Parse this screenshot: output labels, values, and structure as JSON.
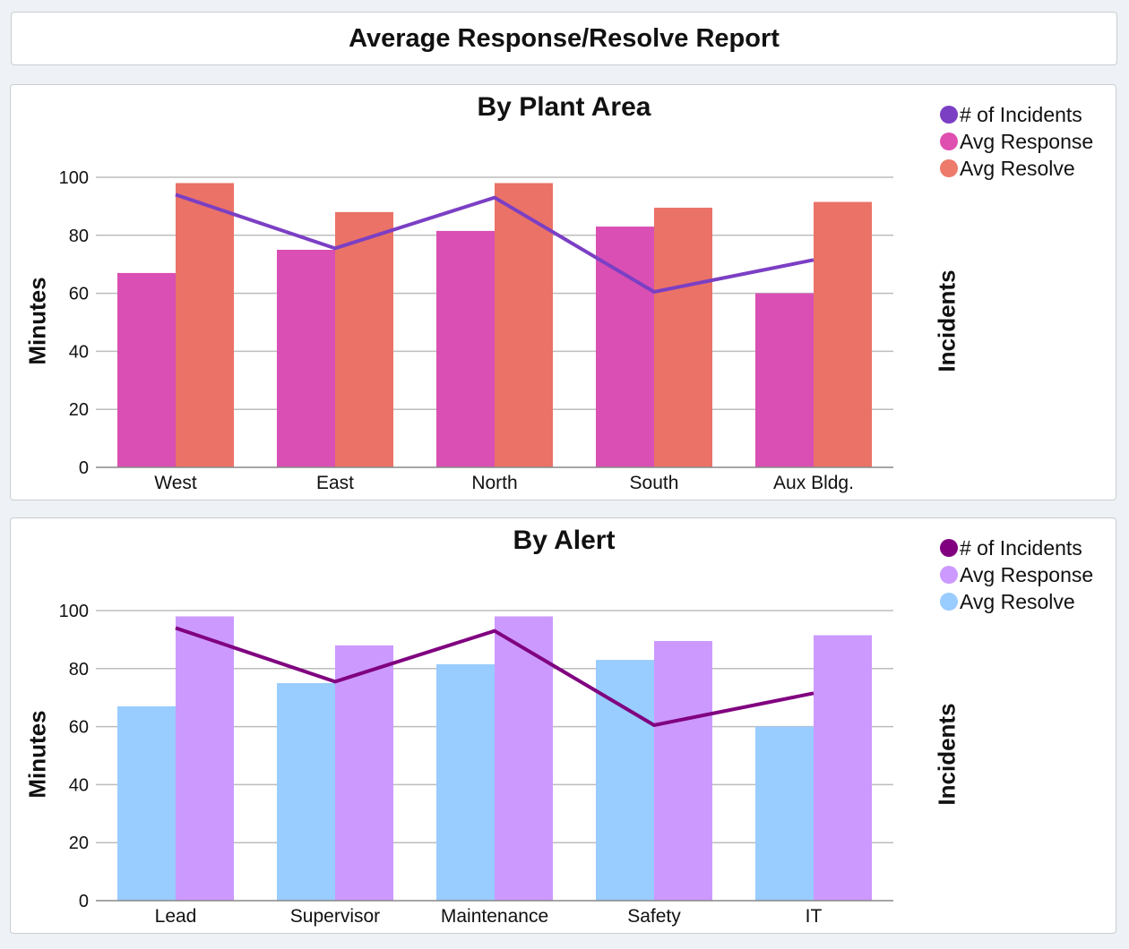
{
  "report_title": "Average Response/Resolve Report",
  "chart_data": [
    {
      "type": "bar",
      "title": "By Plant Area",
      "ylabel": "Minutes",
      "y2label": "Incidents",
      "xlabel": "",
      "ylim": [
        0,
        100
      ],
      "yticks": [
        "0",
        "20",
        "40",
        "60",
        "80",
        "100"
      ],
      "categories": [
        "West",
        "East",
        "North",
        "South",
        "Aux Bldg."
      ],
      "grid": true,
      "legend_position": "top-right",
      "series": [
        {
          "name": "Avg Response",
          "kind": "bar",
          "color": "#d94fb3",
          "values": [
            67,
            75,
            81.5,
            83,
            60
          ]
        },
        {
          "name": "Avg Resolve",
          "kind": "bar",
          "color": "#ea7267",
          "values": [
            98,
            88,
            98,
            89.5,
            91.5
          ]
        },
        {
          "name": "# of Incidents",
          "kind": "line",
          "color": "#7b3fc4",
          "values": [
            94,
            75.5,
            93,
            60.5,
            71.5
          ]
        }
      ],
      "legend": [
        {
          "label": "# of Incidents",
          "color": "#7b3fc4"
        },
        {
          "label": "Avg Response",
          "color": "#df4fb0"
        },
        {
          "label": "Avg Resolve",
          "color": "#ee7a6c"
        }
      ]
    },
    {
      "type": "bar",
      "title": "By Alert",
      "ylabel": "Minutes",
      "y2label": "Incidents",
      "xlabel": "",
      "ylim": [
        0,
        100
      ],
      "yticks": [
        "0",
        "20",
        "40",
        "60",
        "80",
        "100"
      ],
      "categories": [
        "Lead",
        "Supervisor",
        "Maintenance",
        "Safety",
        "IT"
      ],
      "grid": true,
      "legend_position": "top-right",
      "series": [
        {
          "name": "Avg Resolve",
          "kind": "bar",
          "color": "#99ccff",
          "values": [
            67,
            75,
            81.5,
            83,
            60
          ]
        },
        {
          "name": "Avg Response",
          "kind": "bar",
          "color": "#cc99ff",
          "values": [
            98,
            88,
            98,
            89.5,
            91.5
          ]
        },
        {
          "name": "# of Incidents",
          "kind": "line",
          "color": "#800080",
          "values": [
            94,
            75.5,
            93,
            60.5,
            71.5
          ]
        }
      ],
      "legend": [
        {
          "label": "#   of Incidents",
          "color": "#800080"
        },
        {
          "label": "Avg Response",
          "color": "#cc99ff"
        },
        {
          "label": "Avg Resolve",
          "color": "#99ccff"
        }
      ]
    }
  ]
}
